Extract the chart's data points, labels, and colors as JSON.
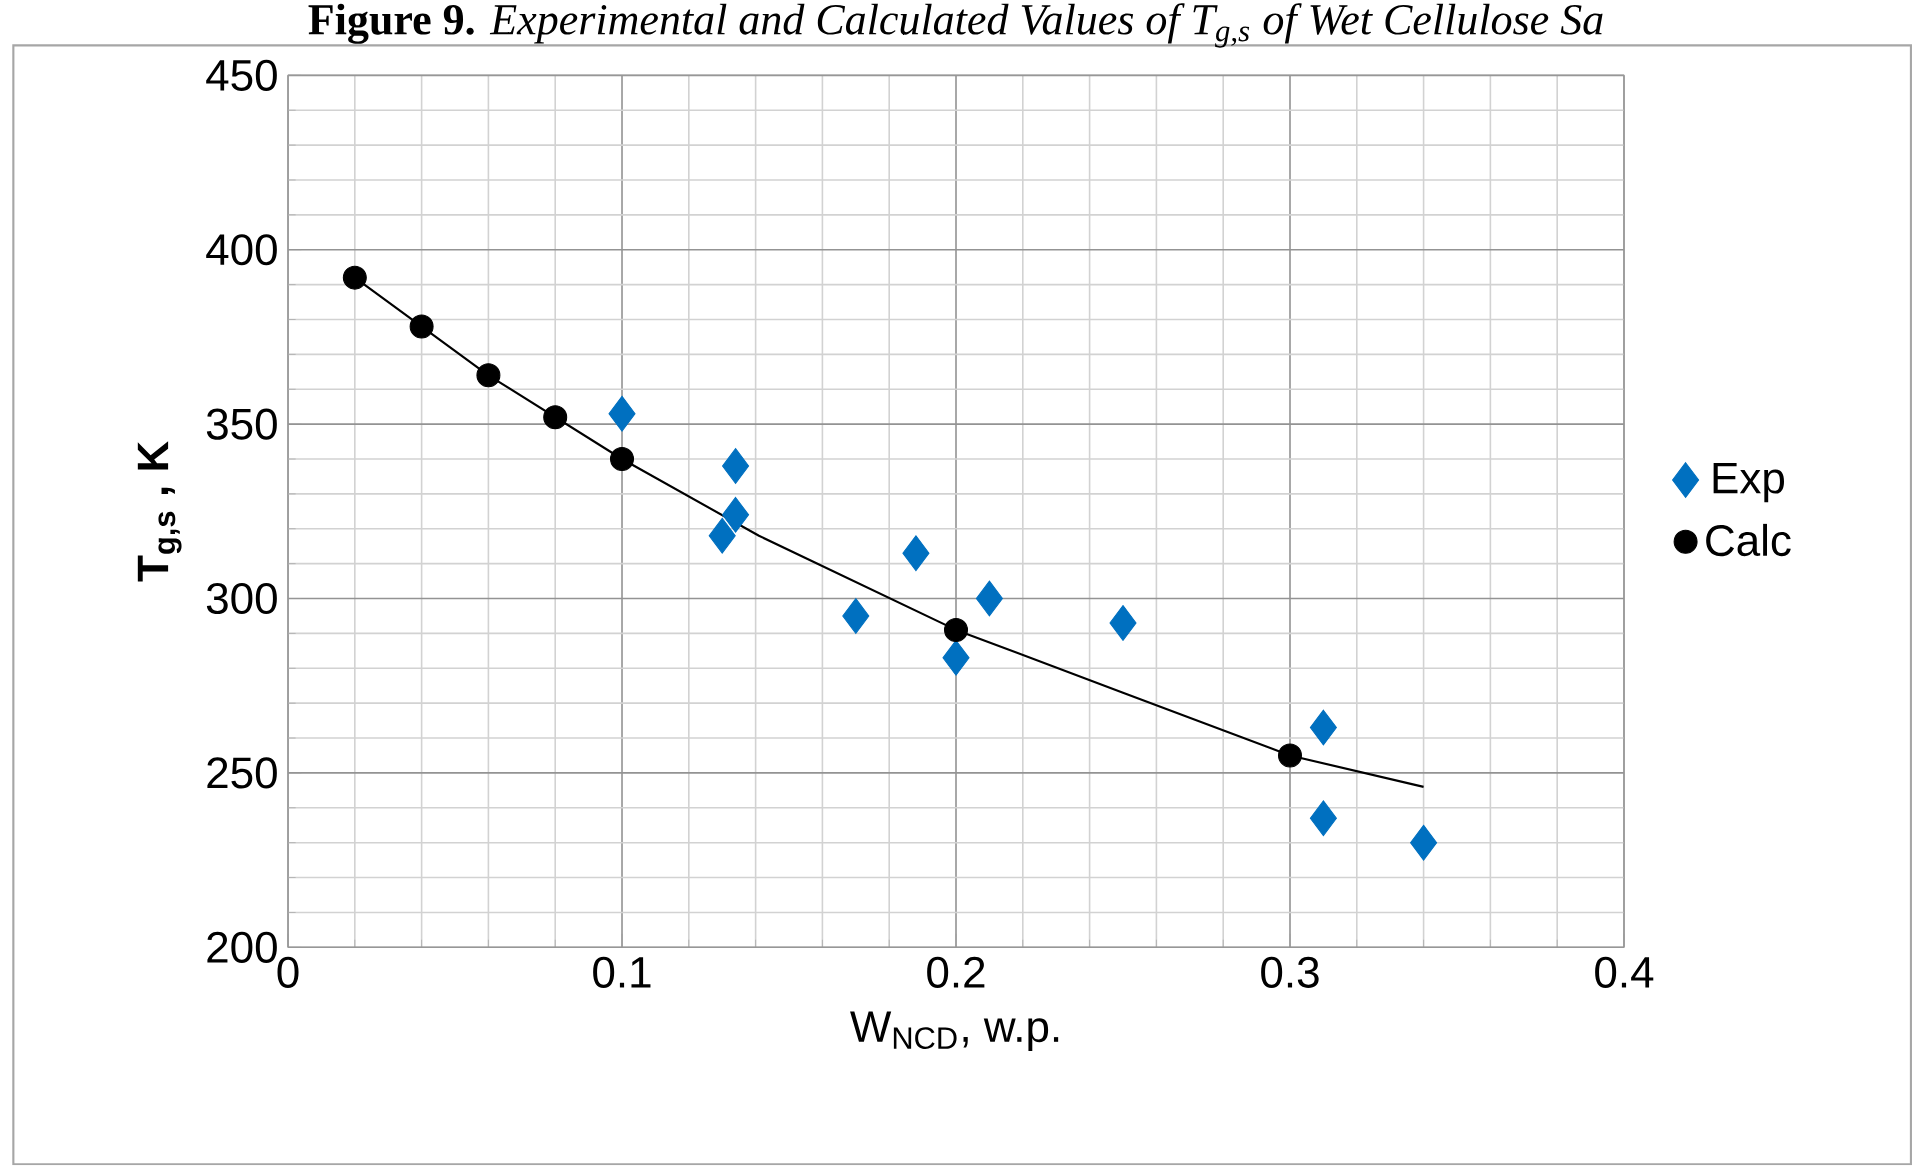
{
  "chart_data": {
    "type": "scatter",
    "title": "**Figure 9.** *Experimental and Calculated Values of T$_{g,s}$ of Wet Cellulose Sa*",
    "xlabel": "W$_{NCD}$, w.p.",
    "ylabel": "T$_{g,s}$ , K",
    "xlim": [
      0,
      0.4
    ],
    "xticks": [
      0,
      0.1,
      0.2,
      0.3,
      0.4
    ],
    "ylim": [
      200,
      450
    ],
    "yticks": [
      200,
      250,
      300,
      350,
      400,
      450
    ],
    "grid": true,
    "legend": "right",
    "series": [
      {
        "name": "Exp",
        "type": "scatter",
        "marker": "diamond",
        "color": "#0070c0",
        "x": [
          0.1,
          0.134,
          0.134,
          0.13,
          0.17,
          0.188,
          0.2,
          0.21,
          0.25,
          0.31,
          0.31,
          0.34
        ],
        "values": [
          353,
          338,
          324,
          318,
          295,
          313,
          283,
          300,
          293,
          263,
          237,
          230
        ]
      },
      {
        "name": "Calc",
        "type": "scatter",
        "marker": "circle",
        "color": "#000000",
        "x": [
          0.02,
          0.04,
          0.06,
          0.08,
          0.1,
          0.2,
          0.3
        ],
        "values": [
          392,
          378,
          364,
          352,
          340,
          291,
          255
        ]
      },
      {
        "type": "line",
        "marker": "none",
        "line_style": "solid",
        "color": "#000000",
        "x": [
          0.02,
          0.06,
          0.1,
          0.141,
          0.2,
          0.25,
          0.3,
          0.34
        ],
        "values": [
          392,
          364,
          340,
          318,
          291,
          273,
          255,
          246
        ]
      }
    ]
  }
}
